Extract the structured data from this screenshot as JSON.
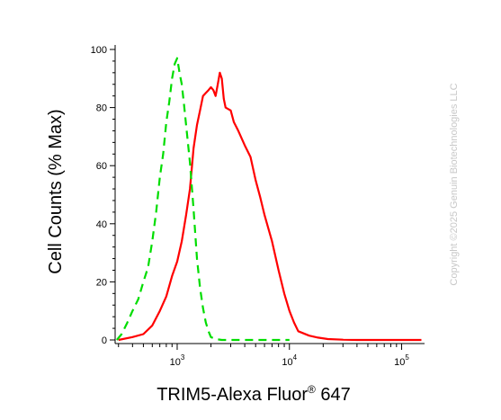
{
  "chart_data": {
    "type": "line",
    "title": "",
    "xlabel": "TRIM5-Alexa Fluor",
    "xlabel_superscript": "®",
    "xlabel_suffix": " 647",
    "ylabel": "Cell Counts (% Max)",
    "xscale": "log",
    "xlim": [
      280,
      160000
    ],
    "ylim": [
      0,
      100
    ],
    "y_ticks": [
      0,
      20,
      40,
      60,
      80,
      100
    ],
    "x_ticks": [
      {
        "value": 1000,
        "base": "10",
        "exp": "3"
      },
      {
        "value": 10000,
        "base": "10",
        "exp": "4"
      },
      {
        "value": 100000,
        "base": "10",
        "exp": "5"
      }
    ],
    "grid": false,
    "series": [
      {
        "color": "#ff0000",
        "style": "solid",
        "x": [
          300,
          400,
          500,
          600,
          700,
          800,
          900,
          1000,
          1100,
          1200,
          1300,
          1400,
          1500,
          1600,
          1700,
          1800,
          1900,
          2000,
          2100,
          2200,
          2300,
          2400,
          2500,
          2600,
          2700,
          3000,
          3200,
          3500,
          4000,
          4500,
          5000,
          5500,
          6000,
          7000,
          8000,
          9000,
          10000,
          11000,
          12000,
          15000,
          18000,
          22000,
          30000,
          40000,
          60000,
          100000,
          150000
        ],
        "values": [
          0,
          1,
          2,
          5,
          10,
          15,
          22,
          27,
          34,
          43,
          52,
          66,
          74,
          79,
          84,
          85,
          86,
          87,
          86,
          84,
          88,
          92,
          90,
          83,
          80,
          79,
          75,
          72,
          67,
          63,
          55,
          49,
          43,
          34,
          24,
          16,
          10,
          6,
          3,
          1.5,
          0.8,
          0.3,
          0.1,
          0,
          0,
          0,
          0
        ]
      },
      {
        "color": "#00dd00",
        "style": "dashed",
        "x": [
          290,
          320,
          360,
          400,
          450,
          500,
          550,
          600,
          650,
          700,
          750,
          800,
          850,
          900,
          950,
          1000,
          1050,
          1100,
          1150,
          1200,
          1300,
          1400,
          1500,
          1600,
          1700,
          1800,
          1900,
          2000,
          2200,
          2500,
          3000,
          4000,
          6000,
          10000
        ],
        "values": [
          0,
          2,
          6,
          10,
          14,
          20,
          25,
          34,
          44,
          56,
          64,
          75,
          82,
          90,
          95,
          97,
          92,
          88,
          81,
          74,
          61,
          45,
          28,
          18,
          11,
          6,
          3,
          1,
          0.3,
          0,
          0,
          0,
          0,
          0
        ]
      }
    ]
  },
  "watermark": "Copyright ©2025 Genuin Biotechnologies LLC"
}
